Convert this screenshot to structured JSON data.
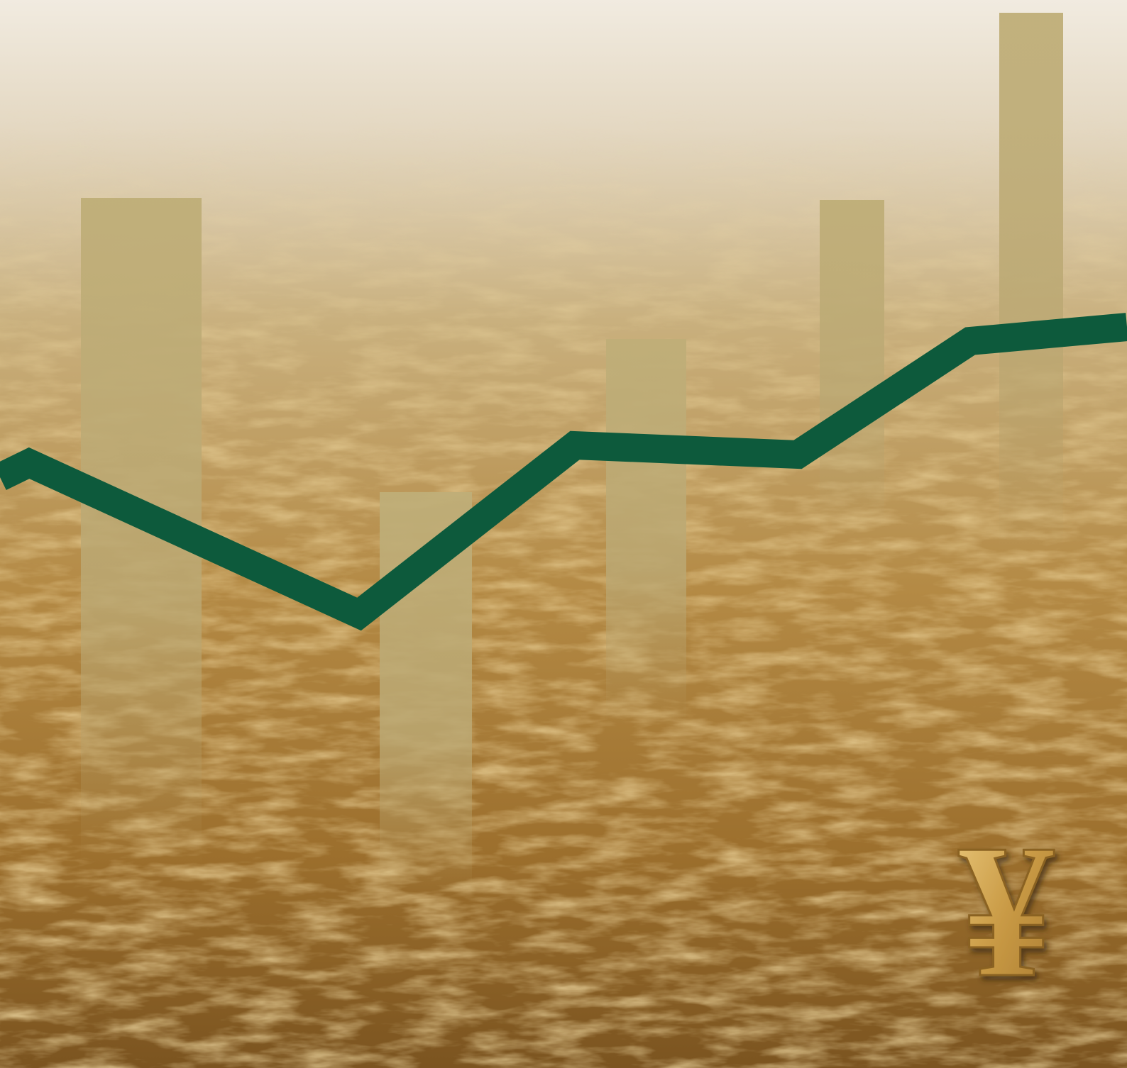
{
  "symbol": "¥"
}
